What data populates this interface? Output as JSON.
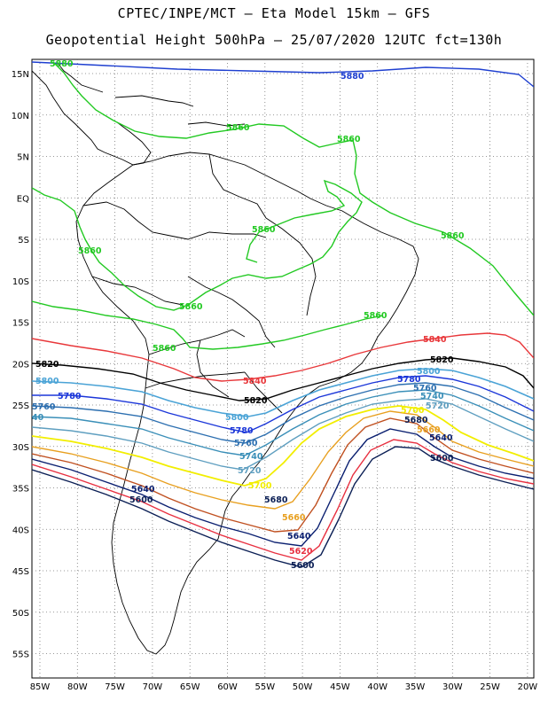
{
  "title": {
    "line1": "CPTEC/INPE/MCT –  Eta Model 15km – GFS",
    "line2": "Geopotential Height 500hPa – 25/07/2020 12UTC fct=130h"
  },
  "axes": {
    "lat_labels": [
      "15N",
      "10N",
      "5N",
      "EQ",
      "5S",
      "10S",
      "15S",
      "20S",
      "25S",
      "30S",
      "35S",
      "40S",
      "45S",
      "50S",
      "55S"
    ],
    "lon_labels": [
      "85W",
      "80W",
      "75W",
      "70W",
      "65W",
      "60W",
      "55W",
      "50W",
      "45W",
      "40W",
      "35W",
      "30W",
      "25W",
      "20W"
    ]
  },
  "colors": {
    "c5880": "#1e3fd0",
    "c5860": "#22c922",
    "c5840": "#e8373a",
    "c5820": "#000000",
    "c5800": "#4aa3d6",
    "c5780": "#1b36d9",
    "c5760": "#2c6fb0",
    "c5740": "#3a8fb8",
    "c5720": "#5f9fc0",
    "c5700": "#f2ee00",
    "c5680": "#e8a020",
    "c5660": "#c05020",
    "c5640": "#0a1f70",
    "c5620": "#e83040",
    "c5600": "#0b1f55"
  },
  "contour_labels": {
    "l5880a": "5880",
    "l5880b": "5880",
    "l5860a": "5860",
    "l5860b": "5860",
    "l5860c": "5860",
    "l5860d": "5860",
    "l5860e": "5860",
    "l5860f": "5860",
    "l5860g": "5860",
    "l5860h": "5860",
    "l5840a": "5840",
    "l5840b": "5840",
    "l5820a": "5820",
    "l5820b": "5820",
    "l5820c": "5820",
    "l5800a": "5800",
    "l5800b": "5800",
    "l5800c": "5800",
    "l5780a": "5780",
    "l5780b": "5780",
    "l5780c": "5780",
    "l5760a": "5760",
    "l5760b": "5760",
    "l5760c": "5760",
    "l5740a": "5740",
    "l5740b": "5740",
    "l5740c": "40",
    "l5720a": "5720",
    "l5720b": "5720",
    "l5700a": "5700",
    "l5700b": "5700",
    "l5680a": "5680",
    "l5680b": "5680",
    "l5660a": "5660",
    "l5660b": "5660",
    "l5640a": "5640",
    "l5640b": "5640",
    "l5640c": "5640",
    "l5620a": "5620",
    "l5600a": "5600",
    "l5600b": "5600",
    "l5600c": "5600"
  }
}
